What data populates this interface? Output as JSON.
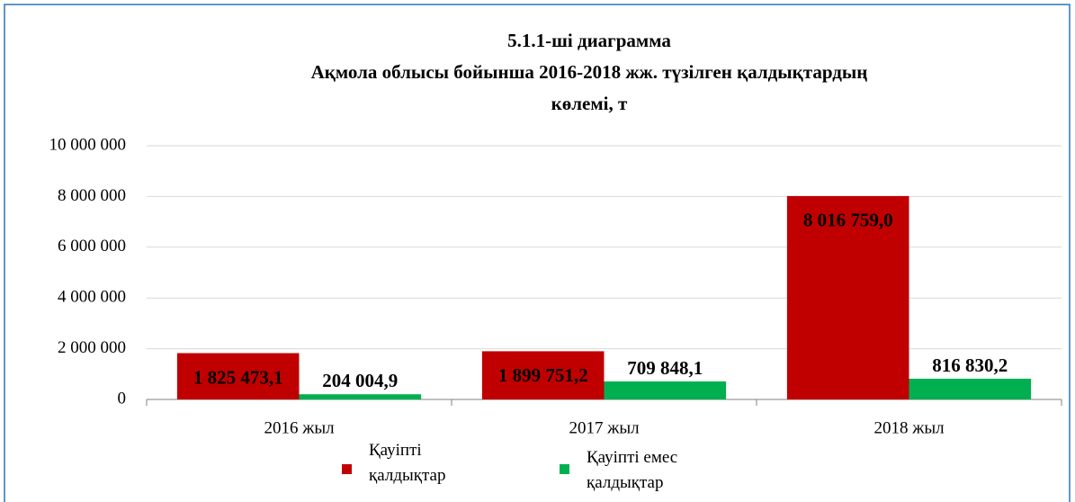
{
  "chart_data": {
    "type": "bar",
    "title": [
      "5.1.1-ші диаграмма",
      "Ақмола облысы бойынша 2016-2018 жж. түзілген қалдықтардың",
      "көлемі, т"
    ],
    "categories": [
      "2016 жыл",
      "2017 жыл",
      "2018 жыл"
    ],
    "series": [
      {
        "name": "Қауіпті қалдықтар",
        "color": "#c00000",
        "values": [
          1825473.1,
          1899751.2,
          8016759.0
        ],
        "value_labels": [
          "1 825 473,1",
          "1 899 751,2",
          "8 016 759,0"
        ]
      },
      {
        "name": "Қауіпті емес қалдықтар",
        "color": "#00b050",
        "values": [
          204004.9,
          709848.1,
          816830.2
        ],
        "value_labels": [
          "204 004,9",
          "709 848,1",
          "816 830,2"
        ]
      }
    ],
    "ylim": [
      0,
      10000000
    ],
    "yticks": [
      0,
      {
        "value": 2000000,
        "label": "2 000 000"
      },
      {
        "value": 4000000,
        "label": "4 000 000"
      },
      {
        "value": 6000000,
        "label": "6 000 000"
      },
      {
        "value": 8000000,
        "label": "8 000 000"
      },
      {
        "value": 10000000,
        "label": "10 000 000"
      }
    ],
    "grid": true,
    "legend": "bottom"
  }
}
